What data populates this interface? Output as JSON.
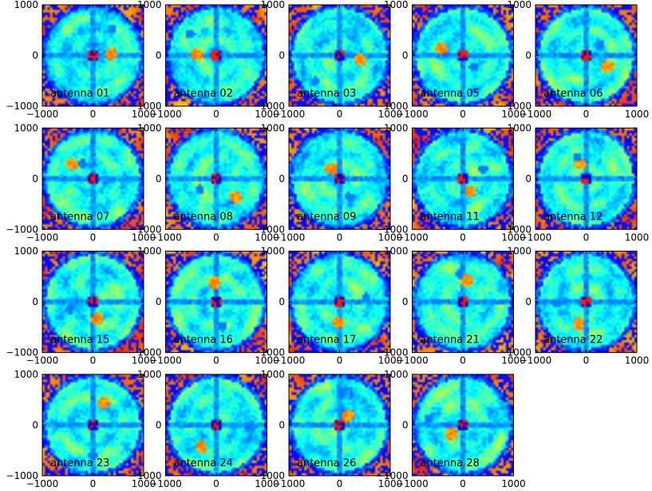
{
  "chart_data": {
    "type": "heatmap",
    "layout": {
      "rows": 4,
      "cols": 5
    },
    "xlim": [
      -1000,
      1000
    ],
    "ylim": [
      -1000,
      1000
    ],
    "xticks": [
      "−1000",
      "0",
      "1000"
    ],
    "yticks": [
      "1000",
      "0",
      "−1000"
    ],
    "colormap": "jet",
    "colors": {
      "axes_frame": "#000000",
      "background": "#ffffff"
    },
    "panels": [
      {
        "label": "antenna 01"
      },
      {
        "label": "antenna 02"
      },
      {
        "label": "antenna 03"
      },
      {
        "label": "antenna 05"
      },
      {
        "label": "antenna 06"
      },
      {
        "label": "antenna 07"
      },
      {
        "label": "antenna 08"
      },
      {
        "label": "antenna 09"
      },
      {
        "label": "antenna 11"
      },
      {
        "label": "antenna 12"
      },
      {
        "label": "antenna 15"
      },
      {
        "label": "antenna 16"
      },
      {
        "label": "antenna 17"
      },
      {
        "label": "antenna 21"
      },
      {
        "label": "antenna 22"
      },
      {
        "label": "antenna 23"
      },
      {
        "label": "antenna 24"
      },
      {
        "label": "antenna 26"
      },
      {
        "label": "antenna 28"
      }
    ]
  }
}
